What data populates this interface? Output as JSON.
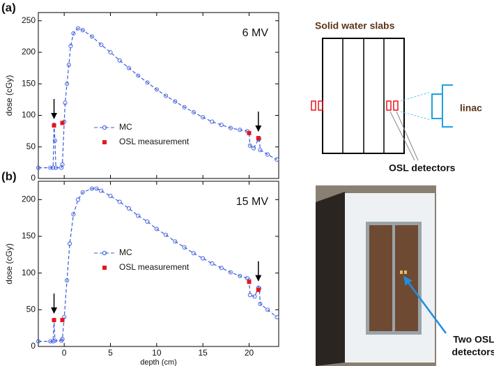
{
  "chart_data": [
    {
      "type": "line",
      "panel_label": "(a)",
      "annotation": "6 MV",
      "ylabel": "dose (cGy)",
      "xlim": [
        -2.8,
        23.2
      ],
      "xticks": [
        0,
        5,
        10,
        15,
        20
      ],
      "show_xtick_labels": false,
      "ylim": [
        0,
        263
      ],
      "yticks": [
        0,
        50,
        100,
        150,
        200,
        250
      ],
      "series": [
        {
          "name": "MC",
          "color": "#3b5bdb",
          "style": "dashed-circle",
          "x": [
            -2.8,
            -1.5,
            -1.2,
            -1.1,
            -1.0,
            -0.9,
            -0.3,
            -0.2,
            0,
            0.1,
            0.3,
            0.5,
            0.7,
            1.0,
            1.5,
            2,
            3,
            4,
            5,
            6,
            7,
            8,
            9,
            10,
            11,
            12,
            13,
            14,
            15,
            16,
            17,
            18,
            19,
            19.8,
            20.0,
            20.1,
            20.5,
            21,
            21.1,
            21.2,
            22,
            23
          ],
          "values": [
            17,
            17,
            17,
            85,
            60,
            17,
            17,
            22,
            90,
            120,
            150,
            180,
            210,
            230,
            238,
            235,
            225,
            212,
            200,
            187,
            175,
            163,
            152,
            141,
            131,
            122,
            113,
            105,
            97,
            90,
            85,
            80,
            77,
            75,
            72,
            52,
            48,
            62,
            63,
            45,
            38,
            30
          ]
        },
        {
          "name": "OSL measurement",
          "color": "#e8151b",
          "style": "square",
          "x": [
            -1.1,
            -0.2,
            20,
            21
          ],
          "values": [
            84,
            88,
            72,
            64
          ]
        }
      ]
    },
    {
      "type": "line",
      "panel_label": "(b)",
      "annotation": "15 MV",
      "ylabel": "dose (cGy)",
      "xlabel": "depth (cm)",
      "xlim": [
        -2.8,
        23.2
      ],
      "xticks": [
        0,
        5,
        10,
        15,
        20
      ],
      "show_xtick_labels": true,
      "ylim": [
        0,
        225
      ],
      "yticks": [
        0,
        50,
        100,
        150,
        200
      ],
      "series": [
        {
          "name": "MC",
          "color": "#3b5bdb",
          "style": "dashed-circle",
          "x": [
            -2.8,
            -1.5,
            -1.2,
            -1.1,
            -1.0,
            -0.3,
            -0.2,
            0,
            0.3,
            0.6,
            1,
            1.5,
            2,
            3,
            3.5,
            4,
            5,
            6,
            7,
            8,
            9,
            10,
            11,
            12,
            13,
            14,
            15,
            16,
            17,
            18,
            19,
            19.8,
            20,
            20.1,
            20.6,
            21,
            21.1,
            21.2,
            22,
            23
          ],
          "values": [
            7,
            7,
            7,
            36,
            8,
            8,
            10,
            40,
            90,
            140,
            180,
            200,
            210,
            215,
            215,
            212,
            205,
            197,
            188,
            178,
            170,
            160,
            152,
            143,
            135,
            127,
            120,
            113,
            107,
            101,
            96,
            93,
            90,
            70,
            68,
            80,
            79,
            58,
            50,
            40
          ]
        },
        {
          "name": "OSL measurement",
          "color": "#e8151b",
          "style": "square",
          "x": [
            -1.1,
            -0.2,
            20,
            21
          ],
          "values": [
            36,
            36,
            88,
            77
          ]
        }
      ]
    }
  ],
  "diagram": {
    "slabs_label": "Solid water slabs",
    "linac_label": "linac",
    "detectors_label": "OSL  detectors"
  },
  "photo": {
    "caption": [
      "Two OSL",
      "detectors"
    ]
  }
}
